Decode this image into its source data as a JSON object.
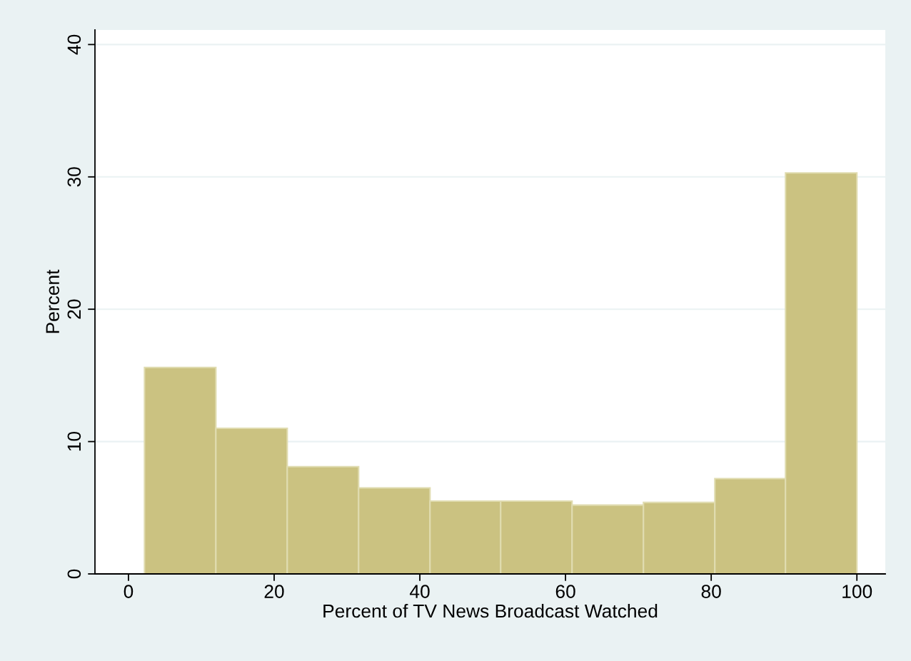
{
  "chart_data": {
    "type": "histogram",
    "xlabel": "Percent of TV News Broadcast Watched",
    "ylabel": "Percent",
    "bins": [
      2.2,
      12.0,
      21.8,
      31.6,
      41.4,
      51.1,
      60.9,
      70.7,
      80.5,
      90.2,
      100
    ],
    "values": [
      15.6,
      11.0,
      8.1,
      6.5,
      5.5,
      5.5,
      5.2,
      5.4,
      7.2,
      30.3
    ],
    "color": "#cbc281",
    "xlim": [
      -4.6,
      103.9
    ],
    "xticks": [
      0,
      20,
      40,
      60,
      80,
      100
    ],
    "ylim": [
      0,
      41.1
    ],
    "yticks": [
      0,
      10,
      20,
      30,
      40
    ],
    "grid": "y"
  }
}
